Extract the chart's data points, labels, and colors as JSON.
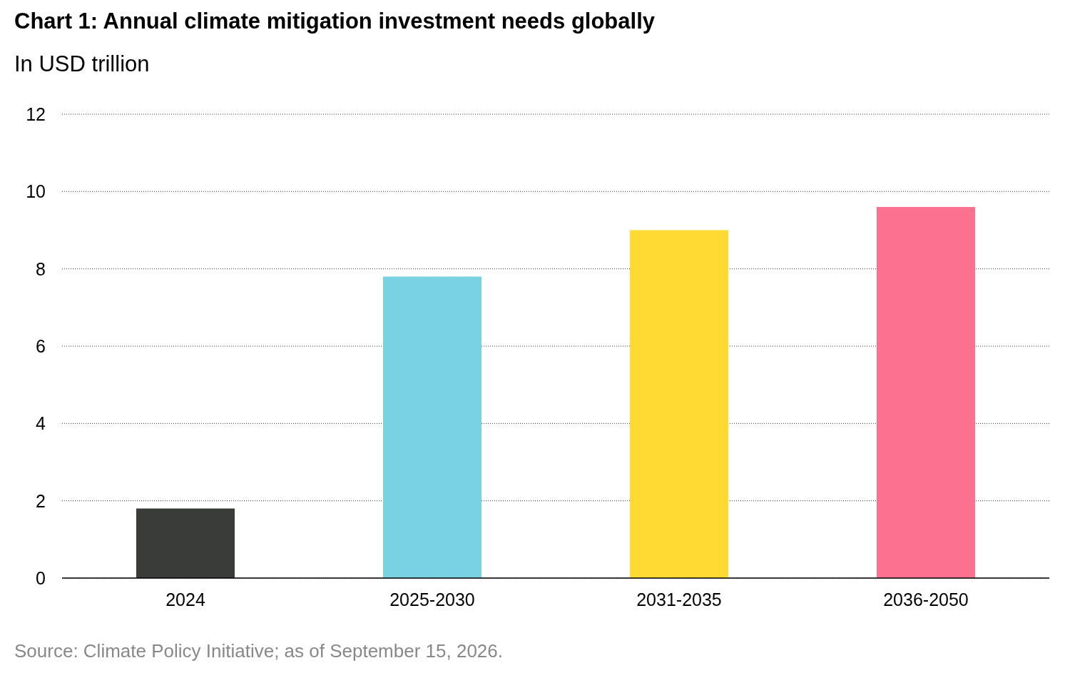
{
  "chart_data": {
    "type": "bar",
    "title": "Chart 1: Annual climate mitigation investment needs globally",
    "subtitle": "In USD trillion",
    "categories": [
      "2024",
      "2025-2030",
      "2031-2035",
      "2036-2050"
    ],
    "values": [
      1.8,
      7.8,
      9.0,
      9.6
    ],
    "colors": [
      "#3a3c3a",
      "#78d2e4",
      "#ffda33",
      "#fc7090"
    ],
    "ylim": [
      0,
      12
    ],
    "yticks": [
      0,
      2,
      4,
      6,
      8,
      10,
      12
    ],
    "grid": "y",
    "annotations": [
      "Source: Climate Policy Initiative; as of September 15, 2026."
    ]
  }
}
